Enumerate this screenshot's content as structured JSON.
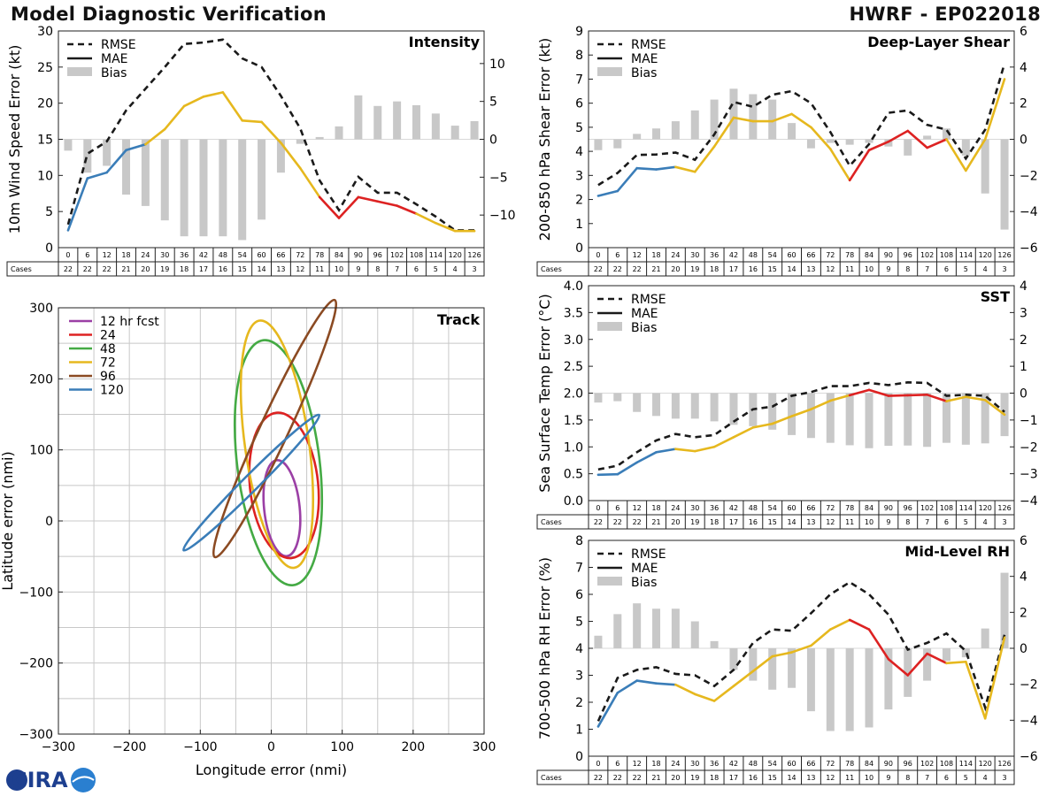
{
  "header": {
    "title": "Model Diagnostic Verification",
    "storm": "HWRF - EP022018"
  },
  "colors": {
    "rmse": "#1a1a1a",
    "bias": "#c8c8c8",
    "grid": "#c8c8c8",
    "seg_early": "#3a7db8",
    "seg_mid": "#e6b81e",
    "seg_late": "#dd2222",
    "track_12": "#9b3fa5",
    "track_24": "#dd2222",
    "track_48": "#44aa44",
    "track_72": "#e6b81e",
    "track_96": "#8b4a22",
    "track_120": "#3a7db8"
  },
  "logo": {
    "text": "CIRA"
  },
  "cases_table": {
    "label": "Cases",
    "hours": [
      "0",
      "6",
      "12",
      "18",
      "24",
      "30",
      "36",
      "42",
      "48",
      "54",
      "60",
      "66",
      "72",
      "78",
      "84",
      "90",
      "96",
      "102",
      "108",
      "114",
      "120",
      "126"
    ],
    "counts": [
      "22",
      "22",
      "22",
      "21",
      "20",
      "19",
      "18",
      "17",
      "16",
      "15",
      "14",
      "13",
      "12",
      "11",
      "10",
      "9",
      "8",
      "7",
      "6",
      "5",
      "4",
      "3"
    ]
  },
  "legend": {
    "rmse": "RMSE",
    "mae": "MAE",
    "bias": "Bias"
  },
  "chart_data": [
    {
      "id": "intensity",
      "type": "line",
      "title": "Intensity",
      "ylabel": "10m Wind Speed Error (kt)",
      "xlabel": "",
      "x": [
        0,
        6,
        12,
        18,
        24,
        30,
        36,
        42,
        48,
        54,
        60,
        66,
        72,
        78,
        84,
        90,
        96,
        102,
        108,
        114,
        120,
        126
      ],
      "ylim": [
        0,
        30
      ],
      "yticks": [
        "0",
        "5",
        "10",
        "15",
        "20",
        "25",
        "30"
      ],
      "y2lim": [
        -14.3,
        14.3
      ],
      "y2ticks": [
        "−10",
        "−5",
        "0",
        "5",
        "10"
      ],
      "y2values": [
        -10,
        -5,
        0,
        5,
        10
      ],
      "series": [
        {
          "name": "RMSE",
          "values": [
            3.2,
            13.0,
            14.7,
            19.0,
            22.0,
            25.0,
            28.2,
            28.4,
            28.8,
            26.2,
            25.0,
            21.0,
            16.5,
            9.3,
            5.2,
            9.8,
            7.6,
            7.6,
            6.0,
            4.3,
            2.4,
            2.4
          ]
        },
        {
          "name": "MAE",
          "values": [
            2.4,
            9.6,
            10.4,
            13.5,
            14.3,
            16.4,
            19.6,
            20.9,
            21.5,
            17.6,
            17.4,
            14.5,
            11.0,
            7.0,
            4.1,
            7.0,
            6.4,
            5.8,
            4.7,
            3.4,
            2.3,
            2.3
          ]
        },
        {
          "name": "Bias",
          "values": [
            -1.5,
            -4.4,
            -3.5,
            -7.3,
            -8.8,
            -10.7,
            -12.8,
            -12.8,
            -12.8,
            -13.3,
            -10.6,
            -4.4,
            -0.6,
            0.3,
            1.7,
            5.8,
            4.4,
            5.0,
            4.5,
            3.4,
            1.8,
            2.4
          ]
        }
      ]
    },
    {
      "id": "shear",
      "type": "line",
      "title": "Deep-Layer Shear",
      "ylabel": "200-850 hPa Shear Error (kt)",
      "xlabel": "",
      "x": [
        0,
        6,
        12,
        18,
        24,
        30,
        36,
        42,
        48,
        54,
        60,
        66,
        72,
        78,
        84,
        90,
        96,
        102,
        108,
        114,
        120,
        126
      ],
      "ylim": [
        0,
        9
      ],
      "yticks": [
        "0",
        "1",
        "2",
        "3",
        "4",
        "5",
        "6",
        "7",
        "8",
        "9"
      ],
      "y2lim": [
        -6,
        6
      ],
      "y2ticks": [
        "−6",
        "−4",
        "−2",
        "0",
        "2",
        "4",
        "6"
      ],
      "y2values": [
        -6,
        -4,
        -2,
        0,
        2,
        4,
        6
      ],
      "series": [
        {
          "name": "RMSE",
          "values": [
            2.6,
            3.1,
            3.85,
            3.87,
            3.95,
            3.65,
            4.7,
            6.05,
            5.85,
            6.35,
            6.5,
            6.0,
            4.8,
            3.4,
            4.3,
            5.6,
            5.7,
            5.1,
            4.9,
            3.7,
            4.9,
            7.65
          ]
        },
        {
          "name": "MAE",
          "values": [
            2.15,
            2.35,
            3.3,
            3.25,
            3.35,
            3.15,
            4.2,
            5.4,
            5.25,
            5.25,
            5.55,
            5.0,
            4.1,
            2.8,
            4.05,
            4.4,
            4.85,
            4.15,
            4.5,
            3.2,
            4.5,
            7.0
          ]
        },
        {
          "name": "Bias",
          "values": [
            -0.6,
            -0.5,
            0.3,
            0.6,
            1.0,
            1.6,
            2.2,
            2.8,
            2.5,
            2.2,
            0.9,
            -0.5,
            -0.2,
            -0.3,
            -0.2,
            -0.4,
            -0.9,
            0.2,
            0.6,
            -0.9,
            -3.0,
            -5.0
          ]
        }
      ]
    },
    {
      "id": "sst",
      "type": "line",
      "title": "SST",
      "ylabel": "Sea Surface Temp Error (°C)",
      "xlabel": "",
      "x": [
        0,
        6,
        12,
        18,
        24,
        30,
        36,
        42,
        48,
        54,
        60,
        66,
        72,
        78,
        84,
        90,
        96,
        102,
        108,
        114,
        120,
        126
      ],
      "ylim": [
        0,
        4
      ],
      "yticks": [
        "0.0",
        "0.5",
        "1.0",
        "1.5",
        "2.0",
        "2.5",
        "3.0",
        "3.5",
        "4.0"
      ],
      "y2lim": [
        -4,
        4
      ],
      "y2ticks": [
        "−4",
        "−3",
        "−2",
        "−1",
        "0",
        "1",
        "2",
        "3",
        "4"
      ],
      "y2values": [
        -4,
        -3,
        -2,
        -1,
        0,
        1,
        2,
        3,
        4
      ],
      "series": [
        {
          "name": "RMSE",
          "values": [
            0.58,
            0.65,
            0.9,
            1.12,
            1.24,
            1.18,
            1.22,
            1.47,
            1.7,
            1.75,
            1.95,
            2.02,
            2.13,
            2.13,
            2.19,
            2.15,
            2.2,
            2.19,
            1.95,
            1.97,
            1.95,
            1.65
          ]
        },
        {
          "name": "MAE",
          "values": [
            0.48,
            0.49,
            0.71,
            0.9,
            0.96,
            0.92,
            1.0,
            1.18,
            1.36,
            1.43,
            1.57,
            1.7,
            1.86,
            1.96,
            2.06,
            1.95,
            1.96,
            1.97,
            1.85,
            1.93,
            1.87,
            1.6
          ]
        },
        {
          "name": "Bias",
          "values": [
            -0.35,
            -0.3,
            -0.7,
            -0.85,
            -0.95,
            -0.95,
            -1.05,
            -1.18,
            -1.23,
            -1.36,
            -1.56,
            -1.67,
            -1.85,
            -1.94,
            -2.05,
            -1.96,
            -1.95,
            -2.0,
            -1.85,
            -1.92,
            -1.87,
            -1.6
          ]
        }
      ]
    },
    {
      "id": "rh",
      "type": "line",
      "title": "Mid-Level RH",
      "ylabel": "700-500 hPa RH Error (%)",
      "xlabel": "",
      "x": [
        0,
        6,
        12,
        18,
        24,
        30,
        36,
        42,
        48,
        54,
        60,
        66,
        72,
        78,
        84,
        90,
        96,
        102,
        108,
        114,
        120,
        126
      ],
      "ylim": [
        0,
        8
      ],
      "yticks": [
        "0",
        "1",
        "2",
        "3",
        "4",
        "5",
        "6",
        "7",
        "8"
      ],
      "y2lim": [
        -6,
        6
      ],
      "y2ticks": [
        "−6",
        "−4",
        "−2",
        "0",
        "2",
        "4",
        "6"
      ],
      "y2values": [
        -6,
        -4,
        -2,
        0,
        2,
        4,
        6
      ],
      "series": [
        {
          "name": "RMSE",
          "values": [
            1.3,
            2.9,
            3.2,
            3.3,
            3.05,
            3.0,
            2.6,
            3.2,
            4.2,
            4.7,
            4.65,
            5.3,
            6.0,
            6.45,
            6.0,
            5.25,
            3.95,
            4.2,
            4.55,
            3.9,
            1.8,
            4.5
          ]
        },
        {
          "name": "MAE",
          "values": [
            1.1,
            2.35,
            2.8,
            2.7,
            2.65,
            2.3,
            2.05,
            2.6,
            3.15,
            3.7,
            3.85,
            4.1,
            4.7,
            5.05,
            4.7,
            3.6,
            3.0,
            3.8,
            3.45,
            3.5,
            1.4,
            4.4
          ]
        },
        {
          "name": "Bias",
          "values": [
            0.7,
            1.9,
            2.5,
            2.2,
            2.2,
            1.5,
            0.4,
            -1.2,
            -1.8,
            -2.3,
            -2.2,
            -3.5,
            -4.6,
            -4.6,
            -4.4,
            -3.4,
            -2.7,
            -1.8,
            -0.7,
            -0.5,
            1.1,
            4.2
          ]
        }
      ]
    },
    {
      "id": "track",
      "type": "scatter",
      "title": "Track",
      "xlabel": "Longitude error (nmi)",
      "ylabel": "Latitude error (nmi)",
      "xlim": [
        -300,
        300
      ],
      "ylim": [
        -300,
        300
      ],
      "xticks": [
        "−300",
        "−200",
        "−100",
        "0",
        "100",
        "200",
        "300"
      ],
      "xvalues": [
        -300,
        -200,
        -100,
        0,
        100,
        200,
        300
      ],
      "yticks": [
        "−300",
        "−200",
        "−100",
        "0",
        "100",
        "200",
        "300"
      ],
      "yvalues": [
        -300,
        -200,
        -100,
        0,
        100,
        200,
        300
      ],
      "ellipses": [
        {
          "name": "12 hr fcst",
          "key": "track_12",
          "cx": 15,
          "cy": 18,
          "rx": 68,
          "ry": 25,
          "angle": -96
        },
        {
          "name": "24",
          "key": "track_24",
          "cx": 18,
          "cy": 50,
          "rx": 103,
          "ry": 48,
          "angle": -96
        },
        {
          "name": "48",
          "key": "track_48",
          "cx": 10,
          "cy": 82,
          "rx": 174,
          "ry": 58,
          "angle": -97
        },
        {
          "name": "72",
          "key": "track_72",
          "cx": 8,
          "cy": 108,
          "rx": 176,
          "ry": 45,
          "angle": -98
        },
        {
          "name": "96",
          "key": "track_96",
          "cx": 5,
          "cy": 130,
          "rx": 200,
          "ry": 20,
          "angle": -65
        },
        {
          "name": "120",
          "key": "track_120",
          "cx": -28,
          "cy": 54,
          "rx": 135,
          "ry": 11,
          "angle": -45
        }
      ]
    }
  ]
}
